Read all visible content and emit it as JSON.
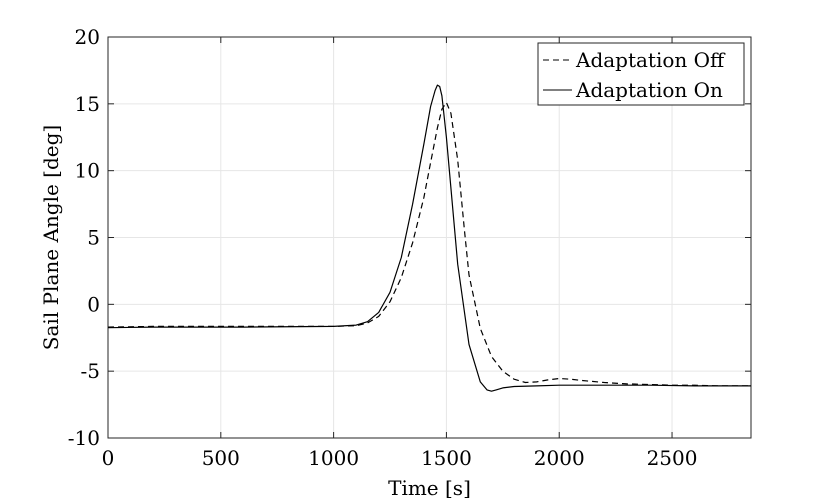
{
  "chart_data": {
    "type": "line",
    "xlabel": "Time [s]",
    "ylabel": "Sail Plane Angle [deg]",
    "xlim": [
      0,
      2850
    ],
    "ylim": [
      -10,
      20
    ],
    "xticks": [
      0,
      500,
      1000,
      1500,
      2000,
      2500
    ],
    "yticks": [
      -10,
      -5,
      0,
      5,
      10,
      15,
      20
    ],
    "xtick_labels": [
      "0",
      "500",
      "1000",
      "1500",
      "2000",
      "2500"
    ],
    "ytick_labels": [
      "-10",
      "-5",
      "0",
      "5",
      "10",
      "15",
      "20"
    ],
    "grid": true,
    "legend_position": "top-right",
    "series": [
      {
        "name": "Adaptation Off",
        "style": "dashed",
        "color": "#000000",
        "x": [
          0,
          200,
          600,
          1000,
          1100,
          1150,
          1200,
          1250,
          1300,
          1350,
          1400,
          1430,
          1460,
          1480,
          1500,
          1520,
          1550,
          1580,
          1600,
          1650,
          1700,
          1750,
          1800,
          1850,
          1900,
          1950,
          2000,
          2050,
          2100,
          2200,
          2300,
          2400,
          2500,
          2600,
          2700,
          2850
        ],
        "y": [
          -1.7,
          -1.65,
          -1.65,
          -1.65,
          -1.6,
          -1.4,
          -0.9,
          0.2,
          2.0,
          4.6,
          8.0,
          10.6,
          13.2,
          14.6,
          15.1,
          14.3,
          10.8,
          5.5,
          2.2,
          -1.8,
          -3.9,
          -5.0,
          -5.6,
          -5.85,
          -5.8,
          -5.65,
          -5.55,
          -5.6,
          -5.7,
          -5.85,
          -5.95,
          -6.0,
          -6.05,
          -6.05,
          -6.1,
          -6.1
        ]
      },
      {
        "name": "Adaptation On",
        "style": "solid",
        "color": "#000000",
        "x": [
          0,
          200,
          600,
          1000,
          1100,
          1150,
          1200,
          1250,
          1300,
          1350,
          1400,
          1430,
          1450,
          1460,
          1470,
          1480,
          1500,
          1550,
          1600,
          1650,
          1680,
          1700,
          1720,
          1750,
          1800,
          1900,
          2000,
          2200,
          2400,
          2600,
          2850
        ],
        "y": [
          -1.75,
          -1.7,
          -1.7,
          -1.65,
          -1.55,
          -1.3,
          -0.6,
          0.9,
          3.5,
          7.5,
          12.0,
          14.8,
          16.0,
          16.4,
          16.3,
          15.6,
          12.5,
          3.0,
          -3.0,
          -5.8,
          -6.4,
          -6.5,
          -6.4,
          -6.25,
          -6.15,
          -6.1,
          -6.05,
          -6.05,
          -6.05,
          -6.1,
          -6.1
        ]
      }
    ]
  }
}
